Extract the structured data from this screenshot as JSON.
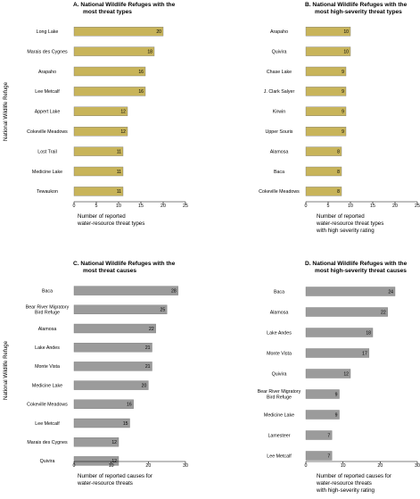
{
  "shared_ylabel": "National Wildlife Refuge",
  "chart_data": [
    {
      "type": "bar",
      "orientation": "horizontal",
      "panel": "A",
      "title": [
        "A.  National Wildlife Refuges with the",
        "most threat types"
      ],
      "categories": [
        "Long Lake",
        "Marais des Cygnes",
        "Arapaho",
        "Lee Metcalf",
        "Appert Lake",
        "Cokeville Meadows",
        "Lost Trail",
        "Medicine Lake",
        "Tewaukon"
      ],
      "values": [
        20,
        18,
        16,
        16,
        12,
        12,
        11,
        11,
        11
      ],
      "xlim": [
        0,
        25
      ],
      "ticks": [
        0,
        5,
        10,
        15,
        20,
        25
      ],
      "xlabel": [
        "Number of reported",
        "water-resource threat types"
      ],
      "ylabel": "National Wildlife Refuge",
      "bar_color": "#c8b45a"
    },
    {
      "type": "bar",
      "orientation": "horizontal",
      "panel": "B",
      "title": [
        "B.  National Wildlife Refuges with the",
        "most high-severity threat types"
      ],
      "categories": [
        "Arapaho",
        "Quivira",
        "Chase Lake",
        "J. Clark Salyer",
        "Kirwin",
        "Upper Souris",
        "Alamosa",
        "Baca",
        "Cokeville Meadows"
      ],
      "values": [
        10,
        10,
        9,
        9,
        9,
        9,
        8,
        8,
        8
      ],
      "xlim": [
        0,
        25
      ],
      "ticks": [
        0,
        5,
        10,
        15,
        20,
        25
      ],
      "xlabel": [
        "Number of reported",
        "water-resource threat types",
        "with high severity rating"
      ],
      "ylabel": "",
      "bar_color": "#c8b45a"
    },
    {
      "type": "bar",
      "orientation": "horizontal",
      "panel": "C",
      "title": [
        "C.  National Wildlife Refuges with the",
        "most threat causes"
      ],
      "categories": [
        "Baca",
        [
          "Bear River Migratory",
          "Bird Refuge"
        ],
        "Alamosa",
        "Lake Andes",
        "Monte Vista",
        "Medicine Lake",
        "Cokeville Meadows",
        "Lee Metcalf",
        "Marais des Cygnes",
        "Quivira"
      ],
      "values": [
        28,
        25,
        22,
        21,
        21,
        20,
        16,
        15,
        12,
        12
      ],
      "xlim": [
        0,
        30
      ],
      "ticks": [
        0,
        10,
        20,
        30
      ],
      "xlabel": [
        "Number of reported causes for",
        "water-resource threats"
      ],
      "ylabel": "National Wildlife Refuge",
      "bar_color": "#9b9b9b"
    },
    {
      "type": "bar",
      "orientation": "horizontal",
      "panel": "D",
      "title": [
        "D.  National Wildlife Refuges with the",
        "most high-severity threat causes"
      ],
      "categories": [
        "Baca",
        "Alamosa",
        "Lake Andes",
        "Monte Vista",
        "Quivira",
        [
          "Bear River Migratory",
          "Bird Refuge"
        ],
        "Medicine Lake",
        "Lamesteer",
        "Lee Metcalf"
      ],
      "values": [
        24,
        22,
        18,
        17,
        12,
        9,
        9,
        7,
        7
      ],
      "xlim": [
        0,
        30
      ],
      "ticks": [
        0,
        10,
        20,
        30
      ],
      "xlabel": [
        "Number of reported causes for",
        "water-resource threats",
        "with high-severity rating"
      ],
      "ylabel": "",
      "bar_color": "#9b9b9b"
    }
  ]
}
